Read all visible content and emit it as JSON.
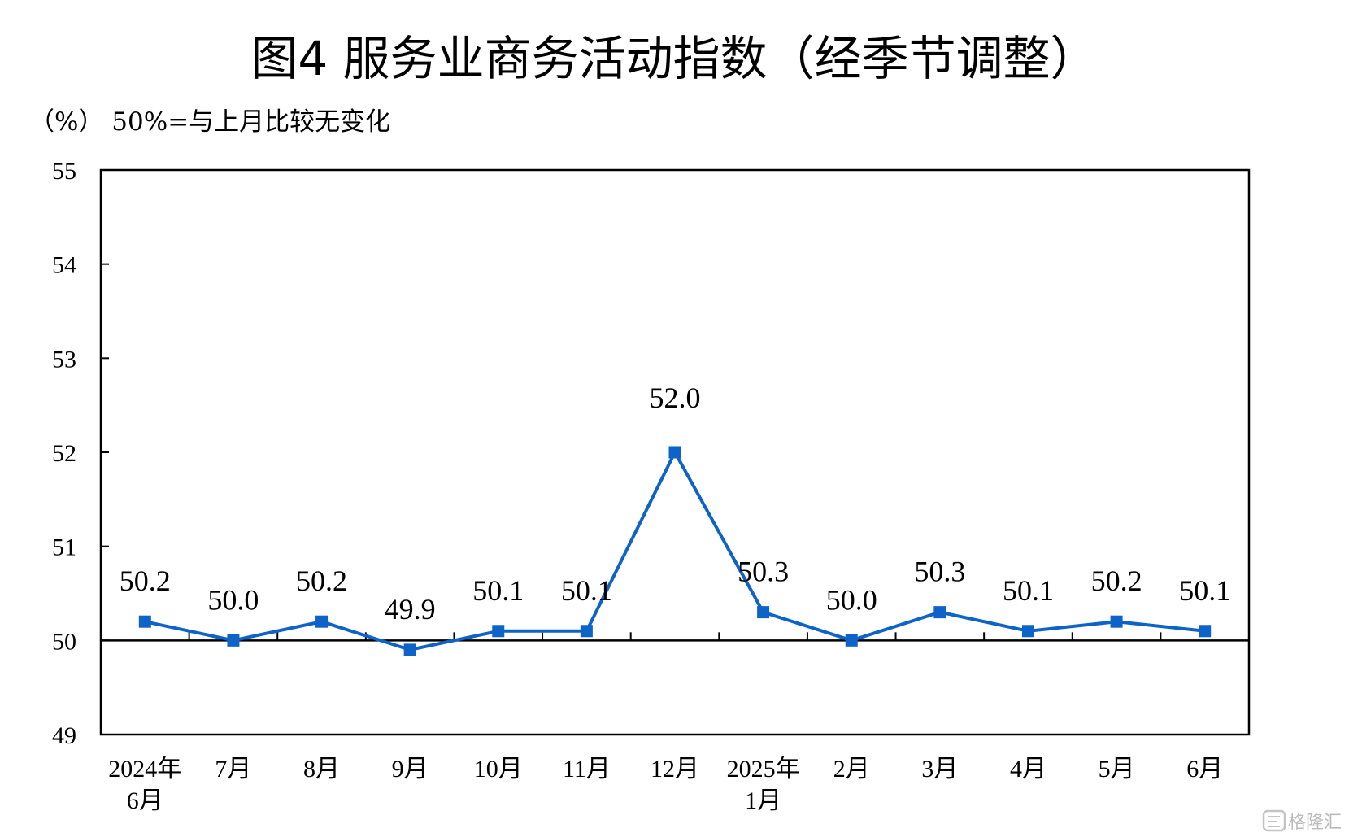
{
  "chart_data": {
    "type": "line",
    "title": "图4  服务业商务活动指数（经季节调整）",
    "unit_note": "（%）  50%=与上月比较无变化",
    "categories": [
      [
        "2024年",
        "6月"
      ],
      [
        "7月"
      ],
      [
        "8月"
      ],
      [
        "9月"
      ],
      [
        "10月"
      ],
      [
        "11月"
      ],
      [
        "12月"
      ],
      [
        "2025年",
        "1月"
      ],
      [
        "2月"
      ],
      [
        "3月"
      ],
      [
        "4月"
      ],
      [
        "5月"
      ],
      [
        "6月"
      ]
    ],
    "values": [
      50.2,
      50.0,
      50.2,
      49.9,
      50.1,
      50.1,
      52.0,
      50.3,
      50.0,
      50.3,
      50.1,
      50.2,
      50.1
    ],
    "value_labels": [
      "50.2",
      "50.0",
      "50.2",
      "49.9",
      "50.1",
      "50.1",
      "52.0",
      "50.3",
      "50.0",
      "50.3",
      "50.1",
      "50.2",
      "50.1"
    ],
    "ylim": [
      49,
      55
    ],
    "yticks": [
      49,
      50,
      51,
      52,
      53,
      54,
      55
    ],
    "reference_line": 50,
    "grid": false,
    "legend": "none",
    "colors": {
      "series": "#0e63c9",
      "axis": "#000000"
    }
  },
  "watermark": {
    "icon": "glh-logo-icon",
    "text": "格隆汇"
  }
}
